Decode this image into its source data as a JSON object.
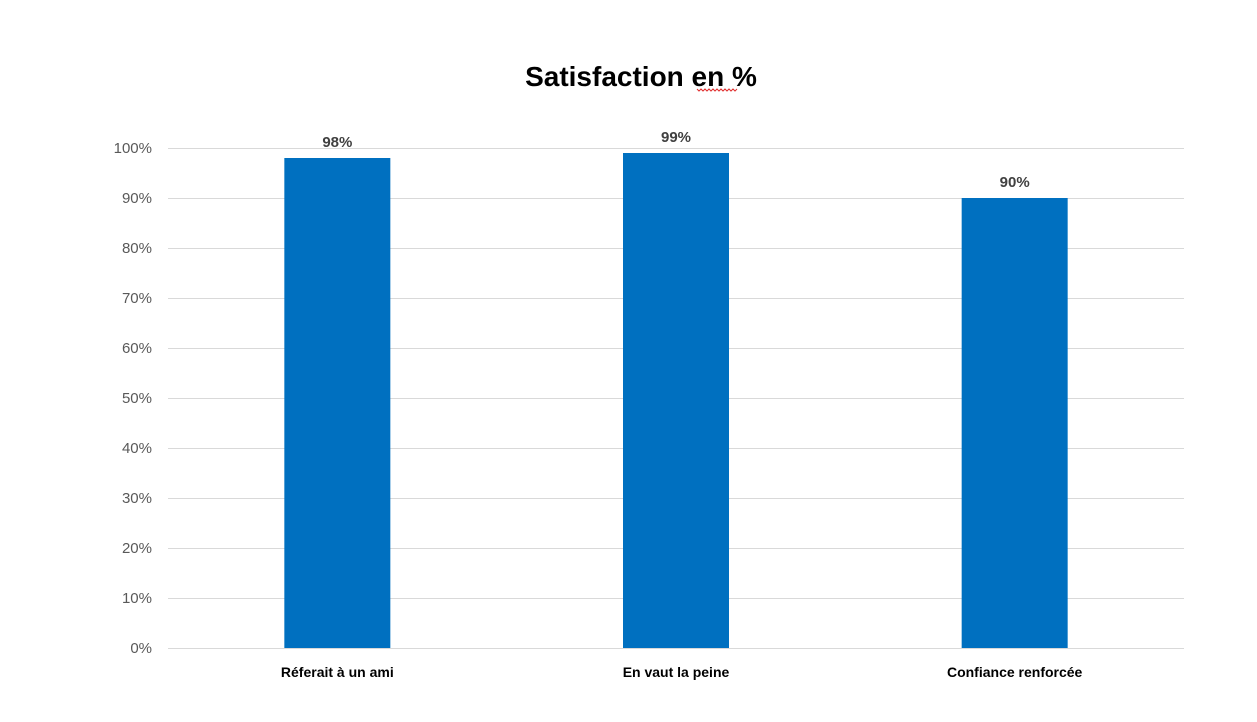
{
  "chart_data": {
    "type": "bar",
    "title": "Satisfaction en %",
    "categories": [
      "Réferait à un ami",
      "En vaut la peine",
      "Confiance renforcée"
    ],
    "values": [
      98,
      99,
      90
    ],
    "value_labels": [
      "98%",
      "99%",
      "90%"
    ],
    "ylim": [
      0,
      100
    ],
    "yticks": [
      0,
      10,
      20,
      30,
      40,
      50,
      60,
      70,
      80,
      90,
      100
    ],
    "ytick_labels": [
      "0%",
      "10%",
      "20%",
      "30%",
      "40%",
      "50%",
      "60%",
      "70%",
      "80%",
      "90%",
      "100%"
    ],
    "xlabel": "",
    "ylabel": "",
    "grid": true,
    "legend": "none",
    "colors": {
      "bar": "#0070C0",
      "grid": "#D9D9D9",
      "title": "#000000",
      "tick_label": "#595959",
      "data_label": "#404040"
    }
  }
}
